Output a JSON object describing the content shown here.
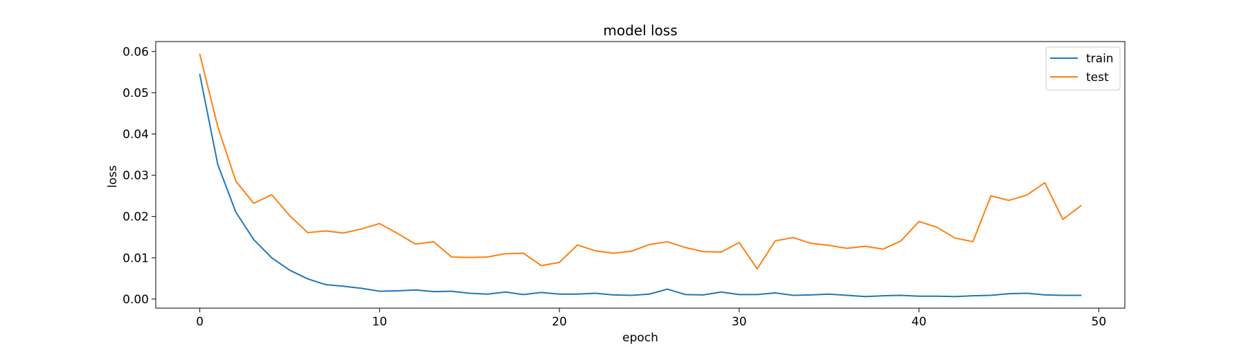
{
  "chart_data": {
    "type": "line",
    "title": "model loss",
    "xlabel": "epoch",
    "ylabel": "loss",
    "xlim": [
      -2.45,
      51.45
    ],
    "ylim": [
      -0.0022,
      0.0624
    ],
    "xticks": [
      0,
      10,
      20,
      30,
      40,
      50
    ],
    "yticks": [
      0.0,
      0.01,
      0.02,
      0.03,
      0.04,
      0.05,
      0.06
    ],
    "ytick_labels": [
      "0.00",
      "0.01",
      "0.02",
      "0.03",
      "0.04",
      "0.05",
      "0.06"
    ],
    "grid": false,
    "legend": "upper right",
    "x": [
      0,
      1,
      2,
      3,
      4,
      5,
      6,
      7,
      8,
      9,
      10,
      11,
      12,
      13,
      14,
      15,
      16,
      17,
      18,
      19,
      20,
      21,
      22,
      23,
      24,
      25,
      26,
      27,
      28,
      29,
      30,
      31,
      32,
      33,
      34,
      35,
      36,
      37,
      38,
      39,
      40,
      41,
      42,
      43,
      44,
      45,
      46,
      47,
      48,
      49
    ],
    "series": [
      {
        "name": "train",
        "color": "#1f77b4",
        "values": [
          0.0544,
          0.0326,
          0.0211,
          0.0144,
          0.01,
          0.007,
          0.0049,
          0.0035,
          0.0031,
          0.0026,
          0.0019,
          0.002,
          0.0022,
          0.0018,
          0.0019,
          0.0014,
          0.0012,
          0.0017,
          0.0011,
          0.0016,
          0.0012,
          0.0012,
          0.0014,
          0.001,
          0.0009,
          0.0012,
          0.0024,
          0.0011,
          0.001,
          0.0017,
          0.0011,
          0.0011,
          0.0015,
          0.0009,
          0.001,
          0.0012,
          0.0009,
          0.0006,
          0.0008,
          0.0009,
          0.0007,
          0.0007,
          0.0006,
          0.0008,
          0.0009,
          0.0013,
          0.0014,
          0.001,
          0.0009,
          0.0009
        ]
      },
      {
        "name": "test",
        "color": "#ff7f0e",
        "values": [
          0.0593,
          0.0418,
          0.0286,
          0.0232,
          0.0253,
          0.0202,
          0.0161,
          0.0165,
          0.016,
          0.017,
          0.0183,
          0.0159,
          0.0133,
          0.0139,
          0.0102,
          0.0101,
          0.0102,
          0.011,
          0.0111,
          0.0081,
          0.0089,
          0.0131,
          0.0117,
          0.0111,
          0.0116,
          0.0132,
          0.0139,
          0.0125,
          0.0115,
          0.0114,
          0.0137,
          0.0073,
          0.0141,
          0.0149,
          0.0135,
          0.013,
          0.0123,
          0.0128,
          0.0121,
          0.0141,
          0.0188,
          0.0174,
          0.0148,
          0.0139,
          0.025,
          0.0239,
          0.0252,
          0.0282,
          0.0193,
          0.0226
        ]
      }
    ]
  }
}
